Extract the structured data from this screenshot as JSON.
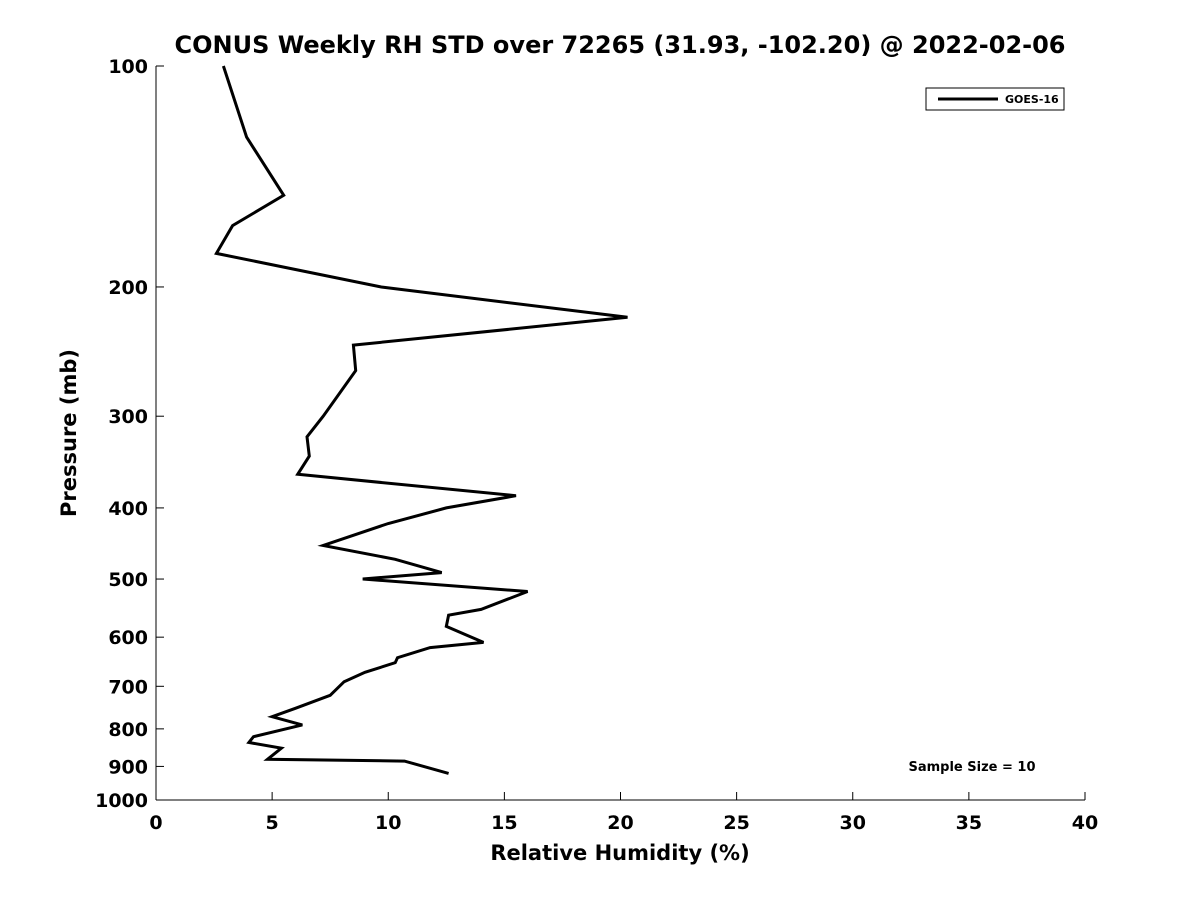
{
  "chart_data": {
    "type": "line",
    "title": "CONUS Weekly RH STD over 72265 (31.93, -102.20) @ 2022-02-06",
    "xlabel": "Relative Humidity (%)",
    "ylabel": "Pressure (mb)",
    "xlim": [
      0,
      40
    ],
    "ylim": [
      100,
      1000
    ],
    "y_scale": "log",
    "y_reversed": true,
    "x_ticks": [
      "0",
      "5",
      "10",
      "15",
      "20",
      "25",
      "30",
      "35",
      "40"
    ],
    "y_ticks": [
      "100",
      "200",
      "300",
      "400",
      "500",
      "600",
      "700",
      "800",
      "900",
      "1000"
    ],
    "grid": false,
    "legend_position": "top-right",
    "annotation": "Sample Size = 10",
    "series": [
      {
        "name": "GOES-16",
        "color": "#000000",
        "points": [
          {
            "rh": 2.9,
            "p": 100
          },
          {
            "rh": 3.9,
            "p": 125
          },
          {
            "rh": 5.5,
            "p": 150
          },
          {
            "rh": 3.3,
            "p": 165
          },
          {
            "rh": 2.6,
            "p": 180
          },
          {
            "rh": 9.7,
            "p": 200
          },
          {
            "rh": 20.3,
            "p": 220
          },
          {
            "rh": 8.5,
            "p": 240
          },
          {
            "rh": 8.6,
            "p": 260
          },
          {
            "rh": 7.2,
            "p": 300
          },
          {
            "rh": 6.5,
            "p": 320
          },
          {
            "rh": 6.6,
            "p": 340
          },
          {
            "rh": 6.1,
            "p": 360
          },
          {
            "rh": 15.5,
            "p": 385
          },
          {
            "rh": 12.5,
            "p": 400
          },
          {
            "rh": 10.0,
            "p": 420
          },
          {
            "rh": 7.2,
            "p": 450
          },
          {
            "rh": 10.3,
            "p": 470
          },
          {
            "rh": 12.3,
            "p": 490
          },
          {
            "rh": 8.9,
            "p": 500
          },
          {
            "rh": 16.0,
            "p": 520
          },
          {
            "rh": 14.0,
            "p": 550
          },
          {
            "rh": 12.6,
            "p": 560
          },
          {
            "rh": 12.5,
            "p": 580
          },
          {
            "rh": 14.1,
            "p": 610
          },
          {
            "rh": 11.8,
            "p": 620
          },
          {
            "rh": 10.4,
            "p": 640
          },
          {
            "rh": 10.3,
            "p": 650
          },
          {
            "rh": 9.0,
            "p": 670
          },
          {
            "rh": 8.1,
            "p": 690
          },
          {
            "rh": 7.5,
            "p": 720
          },
          {
            "rh": 6.0,
            "p": 750
          },
          {
            "rh": 5.0,
            "p": 770
          },
          {
            "rh": 6.3,
            "p": 790
          },
          {
            "rh": 4.2,
            "p": 820
          },
          {
            "rh": 4.0,
            "p": 835
          },
          {
            "rh": 5.4,
            "p": 850
          },
          {
            "rh": 4.8,
            "p": 880
          },
          {
            "rh": 10.7,
            "p": 885
          },
          {
            "rh": 12.6,
            "p": 920
          }
        ]
      }
    ]
  }
}
